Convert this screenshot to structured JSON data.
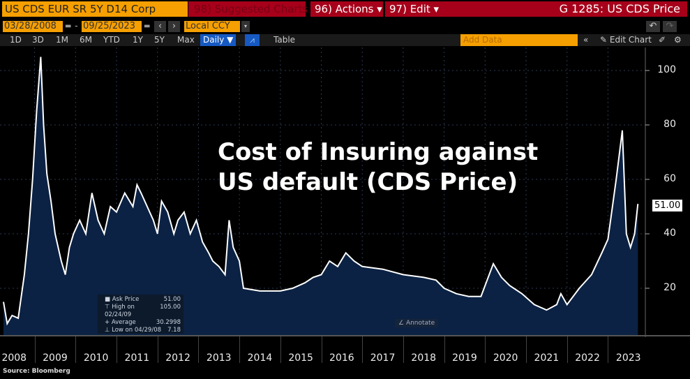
{
  "header": {
    "security": "US CDS EUR SR 5Y D14 Corp",
    "suggested": "98) Suggested Charts",
    "actions": "96) Actions ▾",
    "edit": "97) Edit ▾",
    "title": "G 1285: US CDS Price"
  },
  "controls": {
    "start_date": "03/28/2008",
    "end_date": "09/25/2023",
    "currency": "Local CCY",
    "periods": [
      "1D",
      "3D",
      "1M",
      "6M",
      "YTD",
      "1Y",
      "5Y",
      "Max"
    ],
    "frequency": "Daily ▼",
    "table": "Table",
    "add_data_placeholder": "Add Data",
    "edit_chart": "Edit Chart"
  },
  "legend": {
    "rows": [
      {
        "label": "Ask Price",
        "value": "51.00"
      },
      {
        "label": "High on 02/24/09",
        "value": "105.00"
      },
      {
        "label": "Average",
        "value": "30.2998"
      },
      {
        "label": "Low on 04/29/08",
        "value": "7.18"
      }
    ]
  },
  "annotate": "Annotate",
  "source": "Source: Bloomberg",
  "chart_data": {
    "type": "area",
    "title": "Cost of Insuring against US default (CDS Price)",
    "series_name": "Ask Price",
    "last_value_label": "51.00",
    "ylim": [
      0,
      110
    ],
    "yticks": [
      20,
      40,
      60,
      80,
      100
    ],
    "xlim": [
      2008.0,
      2024.0
    ],
    "xticks": [
      "2008",
      "2009",
      "2010",
      "2011",
      "2012",
      "2013",
      "2014",
      "2015",
      "2016",
      "2017",
      "2018",
      "2019",
      "2020",
      "2021",
      "2022",
      "2023"
    ],
    "colors": {
      "line": "#ffffff",
      "fill": "#0b2244"
    },
    "x": [
      2008.24,
      2008.33,
      2008.45,
      2008.6,
      2008.75,
      2008.85,
      2008.95,
      2009.05,
      2009.15,
      2009.22,
      2009.3,
      2009.4,
      2009.5,
      2009.65,
      2009.75,
      2009.85,
      2009.95,
      2010.1,
      2010.25,
      2010.4,
      2010.55,
      2010.7,
      2010.85,
      2011.0,
      2011.2,
      2011.4,
      2011.5,
      2011.6,
      2011.75,
      2011.9,
      2012.0,
      2012.1,
      2012.25,
      2012.4,
      2012.5,
      2012.65,
      2012.8,
      2012.95,
      2013.1,
      2013.25,
      2013.35,
      2013.5,
      2013.65,
      2013.75,
      2013.85,
      2014.0,
      2014.1,
      2014.5,
      2015.0,
      2015.3,
      2015.6,
      2015.8,
      2016.0,
      2016.2,
      2016.4,
      2016.6,
      2016.8,
      2017.0,
      2017.5,
      2018.0,
      2018.5,
      2018.8,
      2019.0,
      2019.3,
      2019.6,
      2019.9,
      2020.2,
      2020.4,
      2020.6,
      2020.9,
      2021.2,
      2021.5,
      2021.75,
      2021.85,
      2022.0,
      2022.3,
      2022.6,
      2022.85,
      2023.0,
      2023.2,
      2023.35,
      2023.45,
      2023.55,
      2023.65,
      2023.73
    ],
    "y": [
      15,
      7,
      10,
      9,
      25,
      40,
      60,
      85,
      105,
      80,
      62,
      52,
      40,
      30,
      25,
      35,
      40,
      45,
      40,
      55,
      45,
      40,
      50,
      48,
      55,
      50,
      58,
      55,
      50,
      45,
      40,
      52,
      48,
      40,
      45,
      48,
      40,
      45,
      37,
      33,
      30,
      28,
      25,
      45,
      35,
      30,
      20,
      19,
      19,
      20,
      22,
      24,
      25,
      30,
      28,
      33,
      30,
      28,
      27,
      25,
      24,
      23,
      20,
      18,
      17,
      17,
      29,
      24,
      21,
      18,
      14,
      12,
      14,
      18,
      14,
      20,
      25,
      33,
      38,
      60,
      78,
      40,
      35,
      40,
      51
    ]
  }
}
